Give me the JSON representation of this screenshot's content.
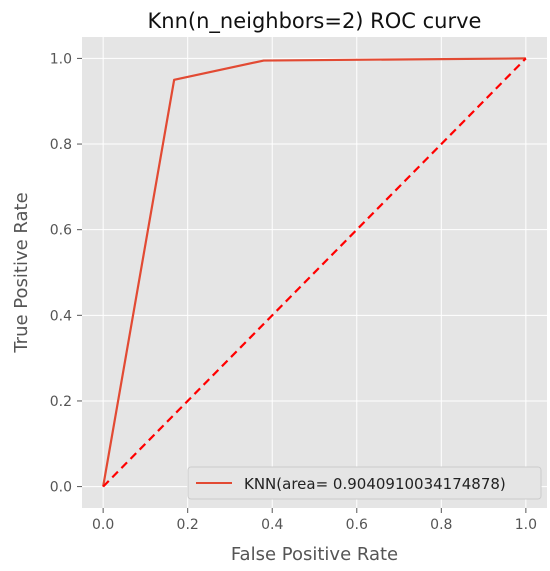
{
  "chart_data": {
    "type": "line",
    "title": "Knn(n_neighbors=2) ROC curve",
    "xlabel": "False Positive Rate",
    "ylabel": "True Positive Rate",
    "xlim": [
      -0.05,
      1.05
    ],
    "ylim": [
      -0.05,
      1.05
    ],
    "x_ticks": [
      "0.0",
      "0.2",
      "0.4",
      "0.6",
      "0.8",
      "1.0"
    ],
    "y_ticks": [
      "0.0",
      "0.2",
      "0.4",
      "0.6",
      "0.8",
      "1.0"
    ],
    "grid": true,
    "legend_position": "lower-right",
    "series": [
      {
        "name": "KNN(area= 0.9040910034174878)",
        "style": "solid",
        "color": "#E24A33",
        "x": [
          0.0,
          0.168,
          0.38,
          1.0
        ],
        "y": [
          0.0,
          0.95,
          0.995,
          1.0
        ]
      },
      {
        "style": "dashed",
        "color": "#FF0000",
        "x": [
          0.0,
          1.0
        ],
        "y": [
          0.0,
          1.0
        ]
      }
    ]
  }
}
